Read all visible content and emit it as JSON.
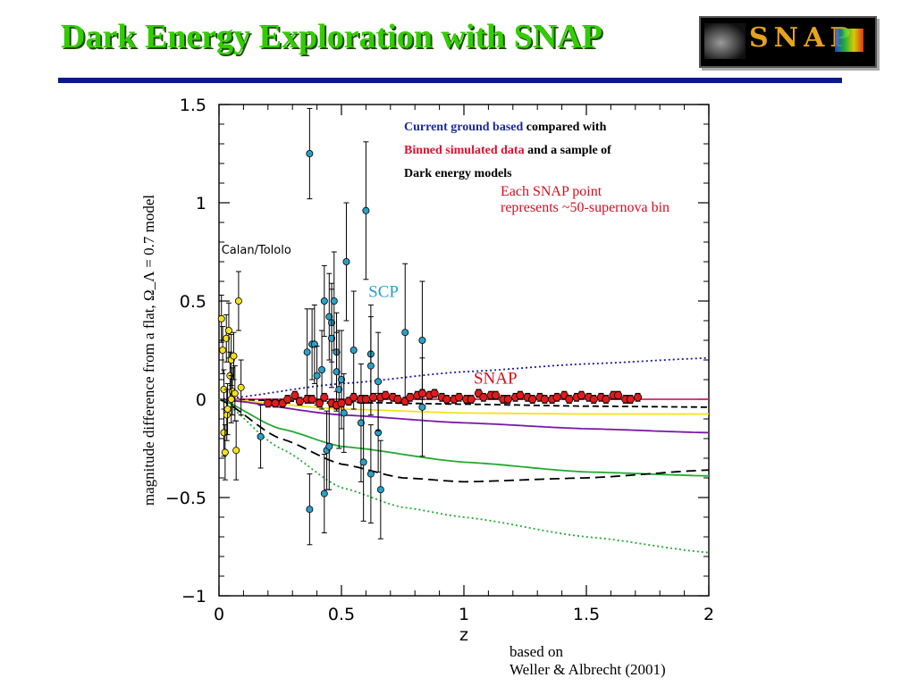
{
  "slide": {
    "title": "Dark Energy Exploration with SNAP",
    "logo_text": "SNAP",
    "note_line1_a": "Current ground based",
    "note_line1_b": " compared with",
    "note_line2_a": "Binned simulated data",
    "note_line2_b": " and a sample of",
    "note_line3": "Dark energy models",
    "snap_note_line1": "Each SNAP point",
    "snap_note_line2": "represents ~50-supernova bin",
    "citation_line1": "based on",
    "citation_line2": "Weller & Albrecht (2001)"
  },
  "chart_data": {
    "type": "scatter",
    "xlabel": "z",
    "ylabel": "magnitude difference from a flat, Ω_Λ = 0.7 model",
    "xlim": [
      0,
      2
    ],
    "ylim": [
      -1,
      1.5
    ],
    "xticks": [
      0,
      0.5,
      1,
      1.5,
      2
    ],
    "xtick_labels": [
      "0",
      "0.5",
      "1",
      "1.5",
      "2"
    ],
    "yticks": [
      -1,
      -0.5,
      0,
      0.5,
      1,
      1.5
    ],
    "ytick_labels": [
      "−1",
      "−0.5",
      "0",
      "0.5",
      "1",
      "1.5"
    ],
    "grid": false,
    "annotations": [
      {
        "text": "Calan/Tololo",
        "x": 0.01,
        "y": 0.74,
        "color": "#000000"
      },
      {
        "text": "SCP",
        "x": 0.61,
        "y": 0.52,
        "color": "#2aa0c8"
      },
      {
        "text": "SNAP",
        "x": 1.04,
        "y": 0.08,
        "color": "#d01020"
      }
    ],
    "series": [
      {
        "name": "Calan/Tololo",
        "marker": "circle",
        "color": "#f5e11b",
        "points": [
          [
            0.01,
            0.41,
            0.12
          ],
          [
            0.015,
            0.25,
            0.12
          ],
          [
            0.02,
            0.05,
            0.1
          ],
          [
            0.02,
            -0.17,
            0.12
          ],
          [
            0.025,
            -0.27,
            0.14
          ],
          [
            0.03,
            0.31,
            0.12
          ],
          [
            0.032,
            -0.08,
            0.13
          ],
          [
            0.04,
            0.35,
            0.14
          ],
          [
            0.045,
            0.12,
            0.12
          ],
          [
            0.05,
            0.2,
            0.13
          ],
          [
            0.055,
            0.04,
            0.12
          ],
          [
            0.06,
            0.22,
            0.12
          ],
          [
            0.065,
            0.03,
            0.14
          ],
          [
            0.07,
            -0.26,
            0.15
          ],
          [
            0.08,
            0.5,
            0.15
          ],
          [
            0.09,
            0.06,
            0.14
          ],
          [
            0.035,
            -0.05,
            0.13
          ],
          [
            0.05,
            0.0,
            0.12
          ]
        ]
      },
      {
        "name": "SCP",
        "marker": "circle",
        "color": "#2aa0c8",
        "points": [
          [
            0.17,
            -0.19,
            0.16
          ],
          [
            0.36,
            0.24,
            0.22
          ],
          [
            0.37,
            -0.56,
            0.18
          ],
          [
            0.37,
            1.25,
            0.23
          ],
          [
            0.38,
            0.28,
            0.18
          ],
          [
            0.39,
            0.28,
            0.2
          ],
          [
            0.4,
            0.12,
            0.15
          ],
          [
            0.42,
            0.15,
            0.2
          ],
          [
            0.43,
            -0.48,
            0.2
          ],
          [
            0.43,
            0.5,
            0.18
          ],
          [
            0.44,
            -0.26,
            0.2
          ],
          [
            0.45,
            0.42,
            0.22
          ],
          [
            0.45,
            -0.24,
            0.22
          ],
          [
            0.46,
            0.39,
            0.2
          ],
          [
            0.46,
            0.31,
            0.25
          ],
          [
            0.47,
            0.5,
            0.25
          ],
          [
            0.48,
            0.24,
            0.2
          ],
          [
            0.48,
            0.14,
            0.2
          ],
          [
            0.49,
            0.05,
            0.3
          ],
          [
            0.5,
            0.1,
            0.25
          ],
          [
            0.51,
            -0.07,
            0.2
          ],
          [
            0.52,
            0.7,
            0.3
          ],
          [
            0.55,
            0.25,
            0.3
          ],
          [
            0.58,
            -0.12,
            0.3
          ],
          [
            0.59,
            -0.32,
            0.3
          ],
          [
            0.6,
            0.96,
            0.35
          ],
          [
            0.62,
            -0.38,
            0.25
          ],
          [
            0.62,
            0.23,
            0.25
          ],
          [
            0.62,
            0.17,
            0.25
          ],
          [
            0.65,
            -0.17,
            0.2
          ],
          [
            0.65,
            0.09,
            0.25
          ],
          [
            0.66,
            -0.46,
            0.25
          ],
          [
            0.76,
            0.34,
            0.35
          ],
          [
            0.83,
            0.3,
            0.3
          ],
          [
            0.83,
            -0.04,
            0.25
          ]
        ]
      },
      {
        "name": "SNAP",
        "marker": "circle",
        "color": "#e01b1b",
        "points": [
          [
            0.2,
            -0.02,
            0.02
          ],
          [
            0.23,
            -0.02,
            0.02
          ],
          [
            0.26,
            -0.02,
            0.02
          ],
          [
            0.28,
            0.0,
            0.02
          ],
          [
            0.31,
            0.02,
            0.02
          ],
          [
            0.33,
            -0.01,
            0.02
          ],
          [
            0.36,
            0.0,
            0.02
          ],
          [
            0.38,
            0.0,
            0.02
          ],
          [
            0.41,
            -0.02,
            0.02
          ],
          [
            0.43,
            0.01,
            0.02
          ],
          [
            0.46,
            -0.02,
            0.02
          ],
          [
            0.48,
            -0.03,
            0.02
          ],
          [
            0.5,
            -0.02,
            0.02
          ],
          [
            0.53,
            -0.01,
            0.02
          ],
          [
            0.55,
            0.01,
            0.02
          ],
          [
            0.58,
            0.0,
            0.02
          ],
          [
            0.6,
            0.0,
            0.02
          ],
          [
            0.63,
            0.01,
            0.02
          ],
          [
            0.66,
            0.01,
            0.02
          ],
          [
            0.68,
            0.02,
            0.02
          ],
          [
            0.71,
            0.01,
            0.02
          ],
          [
            0.73,
            0.0,
            0.02
          ],
          [
            0.76,
            -0.01,
            0.02
          ],
          [
            0.78,
            0.01,
            0.02
          ],
          [
            0.81,
            0.02,
            0.02
          ],
          [
            0.83,
            0.03,
            0.02
          ],
          [
            0.86,
            0.02,
            0.02
          ],
          [
            0.88,
            0.03,
            0.02
          ],
          [
            0.91,
            0.01,
            0.02
          ],
          [
            0.93,
            0.0,
            0.02
          ],
          [
            0.96,
            0.0,
            0.02
          ],
          [
            0.98,
            0.01,
            0.02
          ],
          [
            1.01,
            0.0,
            0.02
          ],
          [
            1.03,
            0.0,
            0.02
          ],
          [
            1.06,
            0.03,
            0.02
          ],
          [
            1.08,
            0.01,
            0.02
          ],
          [
            1.11,
            0.02,
            0.02
          ],
          [
            1.13,
            0.02,
            0.02
          ],
          [
            1.16,
            0.0,
            0.02
          ],
          [
            1.18,
            0.0,
            0.02
          ],
          [
            1.21,
            0.01,
            0.02
          ],
          [
            1.23,
            0.02,
            0.02
          ],
          [
            1.26,
            0.01,
            0.02
          ],
          [
            1.28,
            0.0,
            0.02
          ],
          [
            1.31,
            0.01,
            0.02
          ],
          [
            1.33,
            0.0,
            0.02
          ],
          [
            1.36,
            0.0,
            0.02
          ],
          [
            1.38,
            0.01,
            0.02
          ],
          [
            1.41,
            0.02,
            0.02
          ],
          [
            1.43,
            0.0,
            0.02
          ],
          [
            1.46,
            0.01,
            0.02
          ],
          [
            1.48,
            0.02,
            0.02
          ],
          [
            1.51,
            0.01,
            0.02
          ],
          [
            1.53,
            0.0,
            0.02
          ],
          [
            1.56,
            0.01,
            0.02
          ],
          [
            1.58,
            0.0,
            0.02
          ],
          [
            1.61,
            0.02,
            0.02
          ],
          [
            1.63,
            0.02,
            0.02
          ],
          [
            1.66,
            0.0,
            0.02
          ],
          [
            1.68,
            0.0,
            0.02
          ],
          [
            1.71,
            0.01,
            0.02
          ]
        ]
      }
    ],
    "model_curves": [
      {
        "color": "#1a1a9a",
        "style": "dotted",
        "x": [
          0,
          0.5,
          1,
          1.5,
          2
        ],
        "y": [
          0,
          0.08,
          0.14,
          0.18,
          0.21
        ]
      },
      {
        "color": "#d6206e",
        "style": "solid",
        "x": [
          0,
          0.5,
          1,
          1.5,
          2
        ],
        "y": [
          0,
          0.0,
          0.0,
          0.0,
          0.0
        ]
      },
      {
        "color": "#000000",
        "style": "dashed",
        "x": [
          0,
          0.5,
          1,
          1.5,
          2
        ],
        "y": [
          0,
          -0.015,
          -0.025,
          -0.035,
          -0.04
        ]
      },
      {
        "color": "#f5e11b",
        "style": "solid",
        "x": [
          0,
          0.5,
          1,
          1.5,
          2
        ],
        "y": [
          0,
          -0.05,
          -0.07,
          -0.075,
          -0.075
        ]
      },
      {
        "color": "#7a1aa8",
        "style": "solid",
        "x": [
          0,
          0.5,
          1,
          1.5,
          2
        ],
        "y": [
          0,
          -0.08,
          -0.12,
          -0.15,
          -0.17
        ]
      },
      {
        "color": "#22aa33",
        "style": "solid",
        "x": [
          0,
          0.25,
          0.5,
          1,
          1.5,
          2
        ],
        "y": [
          0,
          -0.15,
          -0.24,
          -0.32,
          -0.37,
          -0.39
        ]
      },
      {
        "color": "#000000",
        "style": "long-dashed",
        "x": [
          0,
          0.25,
          0.5,
          0.75,
          1,
          1.5,
          2
        ],
        "y": [
          0,
          -0.2,
          -0.33,
          -0.4,
          -0.42,
          -0.4,
          -0.36
        ]
      },
      {
        "color": "#22aa33",
        "style": "dotted",
        "x": [
          0,
          0.25,
          0.5,
          0.75,
          1,
          1.5,
          2
        ],
        "y": [
          0,
          -0.25,
          -0.45,
          -0.55,
          -0.6,
          -0.7,
          -0.78
        ]
      }
    ]
  }
}
